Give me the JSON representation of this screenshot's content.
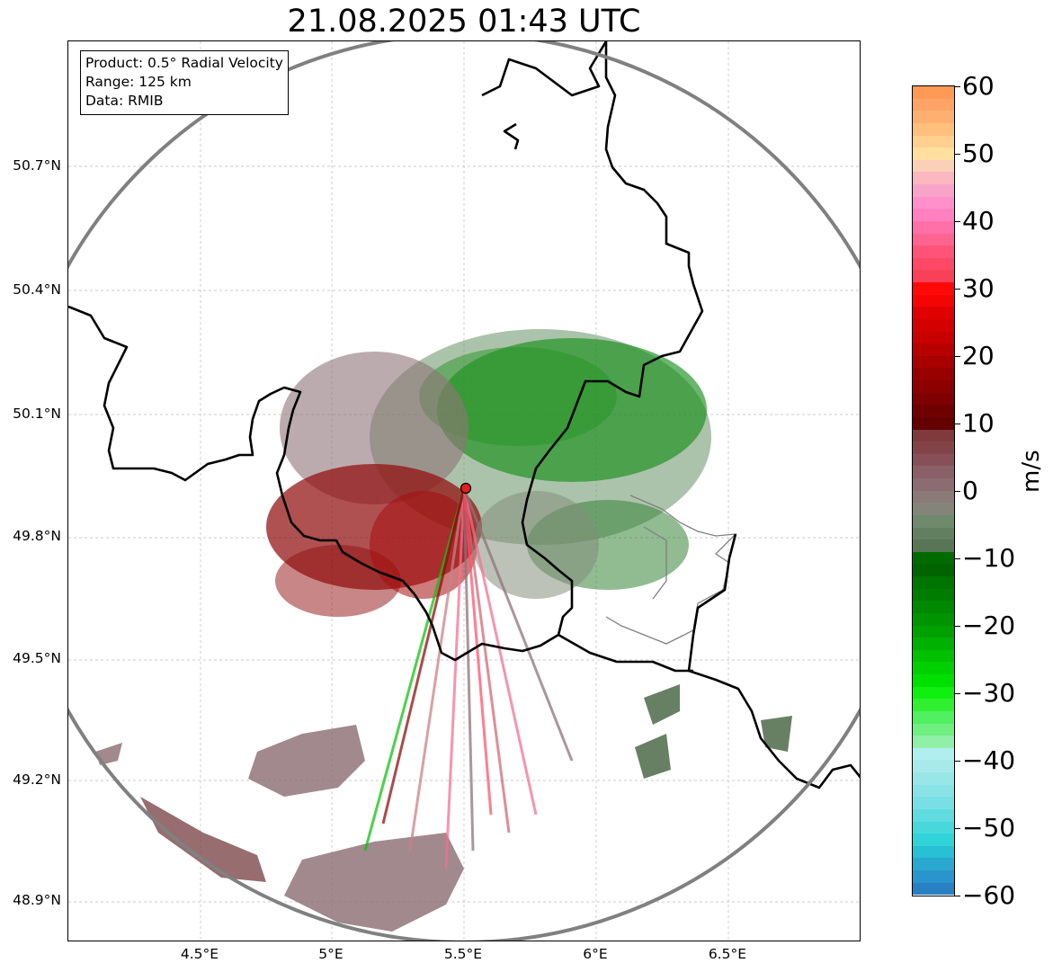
{
  "title": "21.08.2025 01:43 UTC",
  "info_box": {
    "product": "Product: 0.5° Radial Velocity",
    "range": "Range: 125 km",
    "data": "Data: RMIB"
  },
  "map": {
    "x_ticks": [
      "4.5°E",
      "5°E",
      "5.5°E",
      "6°E",
      "6.5°E"
    ],
    "y_ticks": [
      "50.7°N",
      "50.4°N",
      "50.1°N",
      "49.8°N",
      "49.5°N",
      "49.2°N",
      "48.9°N"
    ],
    "radar_site_marker": "radar-site",
    "range_ring_color": "#808080",
    "border_color": "#000000",
    "admin_border_color": "#808080"
  },
  "colorbar": {
    "label": "m/s",
    "ticks": [
      "60",
      "50",
      "40",
      "30",
      "20",
      "10",
      "0",
      "−10",
      "−20",
      "−30",
      "−40",
      "−50",
      "−60"
    ],
    "vmin": -60,
    "vmax": 60,
    "colors_top_to_bottom": [
      "#ff9a55",
      "#ffa466",
      "#ffb070",
      "#ffc07e",
      "#ffd090",
      "#ffe09e",
      "#fcd0b8",
      "#fbb8c0",
      "#f8a4c8",
      "#ff90cc",
      "#ff80c0",
      "#ff70a8",
      "#ff6490",
      "#ff5478",
      "#ff4866",
      "#f84058",
      "#ff0808",
      "#f40404",
      "#e00000",
      "#d40000",
      "#c80000",
      "#b80000",
      "#a80000",
      "#980000",
      "#8c0000",
      "#7e0000",
      "#700000",
      "#640000",
      "#7e3a3c",
      "#834448",
      "#875058",
      "#8a6068",
      "#8b6c72",
      "#8a7a78",
      "#85847a",
      "#6f8a6c",
      "#628060",
      "#587656",
      "#006c00",
      "#006400",
      "#007400",
      "#007c00",
      "#008800",
      "#009400",
      "#00a000",
      "#00b000",
      "#00c000",
      "#00d000",
      "#00e000",
      "#10f010",
      "#30f030",
      "#50f060",
      "#70f080",
      "#90f0a8",
      "#b0eef0",
      "#a8eaea",
      "#98e6e8",
      "#88e2e6",
      "#78e0e4",
      "#60dce0",
      "#48d8dc",
      "#30d4d8",
      "#28c0d4",
      "#2aa8d0",
      "#2a94cc",
      "#2880c4"
    ]
  }
}
